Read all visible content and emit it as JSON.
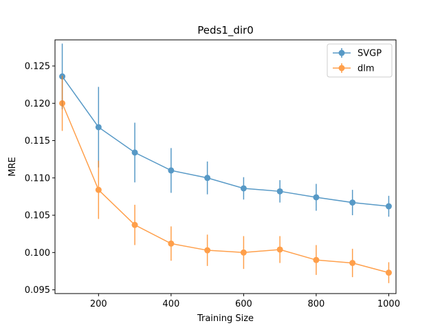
{
  "chart_data": {
    "type": "line",
    "title": "Peds1_dir0",
    "xlabel": "Training Size",
    "ylabel": "MRE",
    "xlim": [
      80,
      1020
    ],
    "ylim": [
      0.0945,
      0.1285
    ],
    "xticks": [
      200,
      400,
      600,
      800,
      1000
    ],
    "yticks": [
      0.095,
      0.1,
      0.105,
      0.11,
      0.115,
      0.12,
      0.125
    ],
    "ytick_labels": [
      "0.095",
      "0.100",
      "0.105",
      "0.110",
      "0.115",
      "0.120",
      "0.125"
    ],
    "grid": false,
    "legend_position": "top-right",
    "x": [
      100,
      200,
      300,
      400,
      500,
      600,
      700,
      800,
      900,
      1000
    ],
    "series": [
      {
        "name": "SVGP",
        "color": "#1f77b4",
        "values": [
          0.1236,
          0.1168,
          0.1134,
          0.111,
          0.11,
          0.1086,
          0.1082,
          0.1074,
          0.1067,
          0.1062
        ],
        "errors": [
          0.0044,
          0.0054,
          0.004,
          0.003,
          0.0022,
          0.0015,
          0.0015,
          0.0018,
          0.0017,
          0.0014
        ]
      },
      {
        "name": "dlm",
        "color": "#ff7f0e",
        "values": [
          0.12,
          0.1084,
          0.1037,
          0.1012,
          0.1003,
          0.1,
          0.1004,
          0.099,
          0.0986,
          0.0973
        ],
        "errors": [
          0.0037,
          0.0039,
          0.0027,
          0.0023,
          0.0021,
          0.0022,
          0.0018,
          0.002,
          0.0019,
          0.0014
        ]
      }
    ]
  }
}
